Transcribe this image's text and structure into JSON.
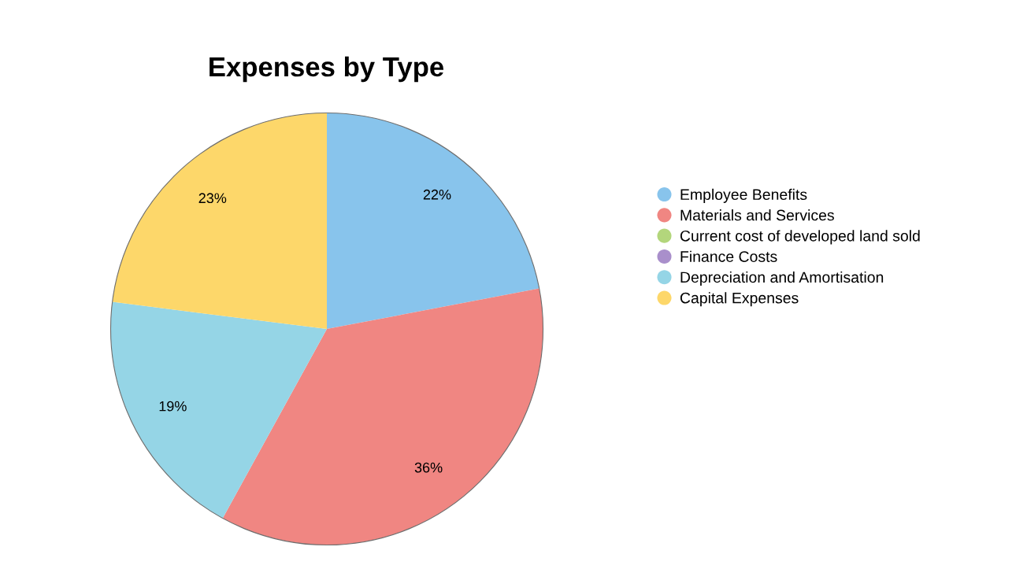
{
  "chart_data": {
    "type": "pie",
    "title": "Expenses by Type",
    "categories": [
      "Employee Benefits",
      "Materials and Services",
      "Current cost of developed land sold",
      "Finance Costs",
      "Depreciation and Amortisation",
      "Capital Expenses"
    ],
    "values": [
      22,
      36,
      0,
      0,
      19,
      23
    ],
    "colors": [
      "#88c4ec",
      "#f08682",
      "#b3d67c",
      "#a98fcb",
      "#95d5e6",
      "#fdd76a"
    ],
    "value_labels": [
      "22%",
      "36%",
      null,
      null,
      "19%",
      "23%"
    ],
    "legend": "right"
  }
}
